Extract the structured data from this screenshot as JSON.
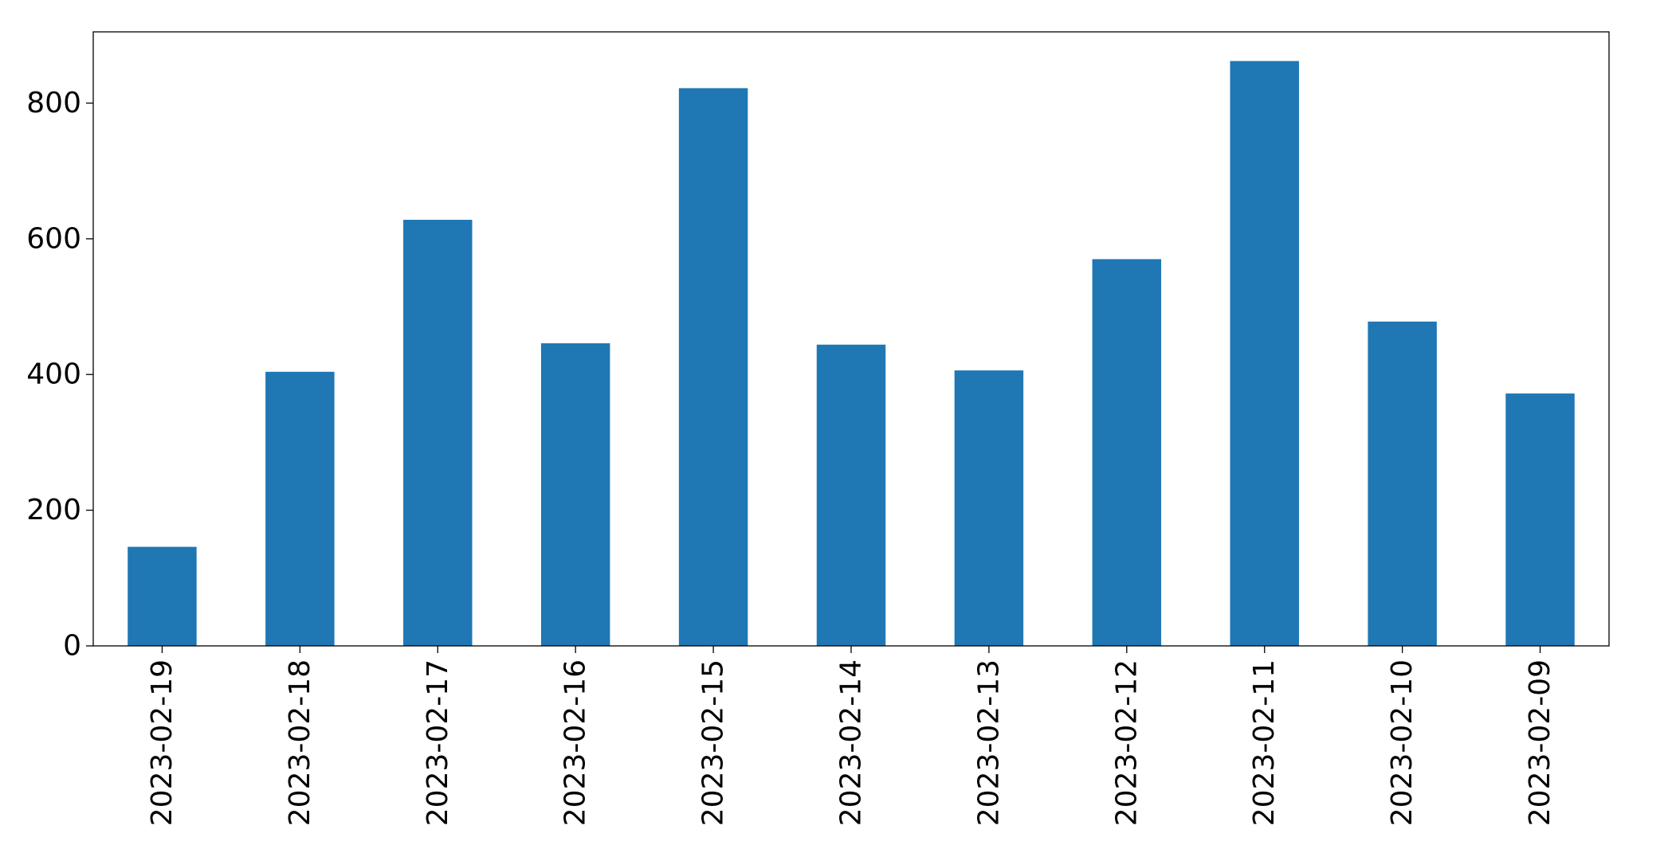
{
  "chart_data": {
    "type": "bar",
    "title": "",
    "xlabel": "",
    "ylabel": "",
    "categories": [
      "2023-02-19",
      "2023-02-18",
      "2023-02-17",
      "2023-02-16",
      "2023-02-15",
      "2023-02-14",
      "2023-02-13",
      "2023-02-12",
      "2023-02-11",
      "2023-02-10",
      "2023-02-09"
    ],
    "values": [
      146,
      404,
      628,
      446,
      822,
      444,
      406,
      570,
      862,
      478,
      372
    ],
    "ylim": [
      0,
      905
    ],
    "yticks": [
      0,
      200,
      400,
      600,
      800
    ],
    "ytick_labels": [
      "0",
      "200",
      "400",
      "600",
      "800"
    ],
    "grid": false,
    "legend": "none",
    "bar_color": "#1f77b4"
  }
}
